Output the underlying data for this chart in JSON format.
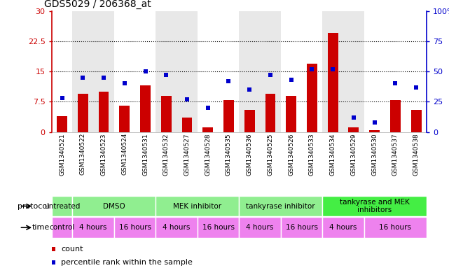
{
  "title": "GDS5029 / 206368_at",
  "samples": [
    "GSM1340521",
    "GSM1340522",
    "GSM1340523",
    "GSM1340524",
    "GSM1340531",
    "GSM1340532",
    "GSM1340527",
    "GSM1340528",
    "GSM1340535",
    "GSM1340536",
    "GSM1340525",
    "GSM1340526",
    "GSM1340533",
    "GSM1340534",
    "GSM1340529",
    "GSM1340530",
    "GSM1340537",
    "GSM1340538"
  ],
  "bar_values": [
    4.0,
    9.5,
    10.0,
    6.5,
    11.5,
    9.0,
    3.5,
    1.2,
    8.0,
    5.5,
    9.5,
    9.0,
    17.0,
    24.5,
    1.2,
    0.4,
    8.0,
    5.5
  ],
  "blue_values": [
    28,
    45,
    45,
    40,
    50,
    47,
    27,
    20,
    42,
    35,
    47,
    43,
    52,
    52,
    12,
    8,
    40,
    37
  ],
  "bar_color": "#cc0000",
  "blue_color": "#0000cc",
  "left_ylim": [
    0,
    30
  ],
  "right_ylim": [
    0,
    100
  ],
  "left_yticks": [
    0,
    7.5,
    15,
    22.5,
    30
  ],
  "right_yticks": [
    0,
    25,
    50,
    75,
    100
  ],
  "left_yticklabels": [
    "0",
    "7.5",
    "15",
    "22.5",
    "30"
  ],
  "right_yticklabels": [
    "0",
    "25",
    "50",
    "75",
    "100%"
  ],
  "dotted_lines": [
    7.5,
    15,
    22.5
  ],
  "protocol_groups": [
    {
      "label": "untreated",
      "start": 0,
      "end": 1,
      "bright": false
    },
    {
      "label": "DMSO",
      "start": 1,
      "end": 5,
      "bright": false
    },
    {
      "label": "MEK inhibitor",
      "start": 5,
      "end": 9,
      "bright": false
    },
    {
      "label": "tankyrase inhibitor",
      "start": 9,
      "end": 13,
      "bright": false
    },
    {
      "label": "tankyrase and MEK\ninhibitors",
      "start": 13,
      "end": 18,
      "bright": true
    }
  ],
  "protocol_color_normal": "#90ee90",
  "protocol_color_bright": "#44ee44",
  "time_groups": [
    {
      "label": "control",
      "start": 0,
      "end": 1
    },
    {
      "label": "4 hours",
      "start": 1,
      "end": 3
    },
    {
      "label": "16 hours",
      "start": 3,
      "end": 5
    },
    {
      "label": "4 hours",
      "start": 5,
      "end": 7
    },
    {
      "label": "16 hours",
      "start": 7,
      "end": 9
    },
    {
      "label": "4 hours",
      "start": 9,
      "end": 11
    },
    {
      "label": "16 hours",
      "start": 11,
      "end": 13
    },
    {
      "label": "4 hours",
      "start": 13,
      "end": 15
    },
    {
      "label": "16 hours",
      "start": 15,
      "end": 18
    }
  ],
  "time_color": "#ee82ee",
  "col_bg_groups": [
    {
      "start": 0,
      "end": 1,
      "white": true
    },
    {
      "start": 1,
      "end": 3,
      "white": false
    },
    {
      "start": 3,
      "end": 5,
      "white": true
    },
    {
      "start": 5,
      "end": 7,
      "white": false
    },
    {
      "start": 7,
      "end": 9,
      "white": true
    },
    {
      "start": 9,
      "end": 11,
      "white": false
    },
    {
      "start": 11,
      "end": 13,
      "white": true
    },
    {
      "start": 13,
      "end": 15,
      "white": false
    },
    {
      "start": 15,
      "end": 18,
      "white": true
    }
  ]
}
